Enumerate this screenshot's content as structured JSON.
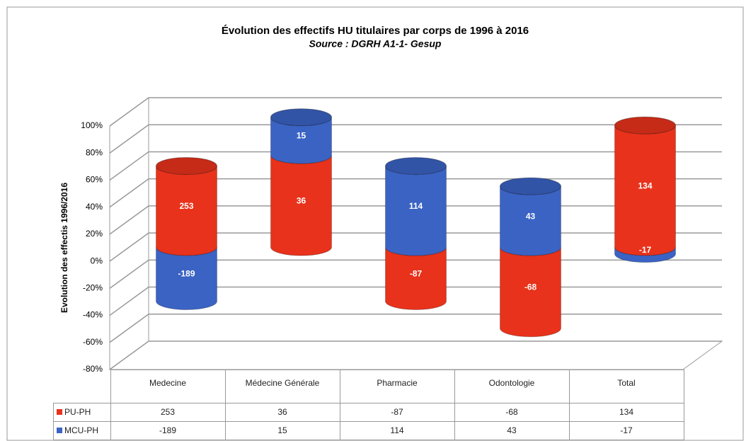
{
  "chart_data": {
    "type": "bar3d-stacked",
    "title": "Évolution des effectifs HU titulaires par corps de 1996 à 2016",
    "subtitle": "Source : DGRH A1-1- Gesup",
    "y_label": "Evolution des effectis 1996/2016",
    "categories": [
      "Medecine",
      "Médecine Générale",
      "Pharmacie",
      "Odontologie",
      "Total"
    ],
    "series": [
      {
        "name": "PU-PH",
        "color": "#e8321b",
        "values": [
          60,
          68,
          -40,
          -60,
          90
        ],
        "counts": [
          253,
          36,
          -87,
          -68,
          134
        ]
      },
      {
        "name": "MCU-PH",
        "color": "#3b63c4",
        "values": [
          -40,
          28,
          60,
          45,
          -5
        ],
        "counts": [
          -189,
          15,
          114,
          43,
          -17
        ]
      }
    ],
    "ylim": [
      -80,
      100
    ],
    "yticks": [
      {
        "value": -80,
        "label": "-80%"
      },
      {
        "value": -60,
        "label": "-60%"
      },
      {
        "value": -40,
        "label": "-40%"
      },
      {
        "value": -20,
        "label": "-20%"
      },
      {
        "value": 0,
        "label": "0%"
      },
      {
        "value": 20,
        "label": "20%"
      },
      {
        "value": 40,
        "label": "40%"
      },
      {
        "value": 60,
        "label": "60%"
      },
      {
        "value": 80,
        "label": "80%"
      },
      {
        "value": 100,
        "label": "100%"
      }
    ],
    "grid": true
  }
}
